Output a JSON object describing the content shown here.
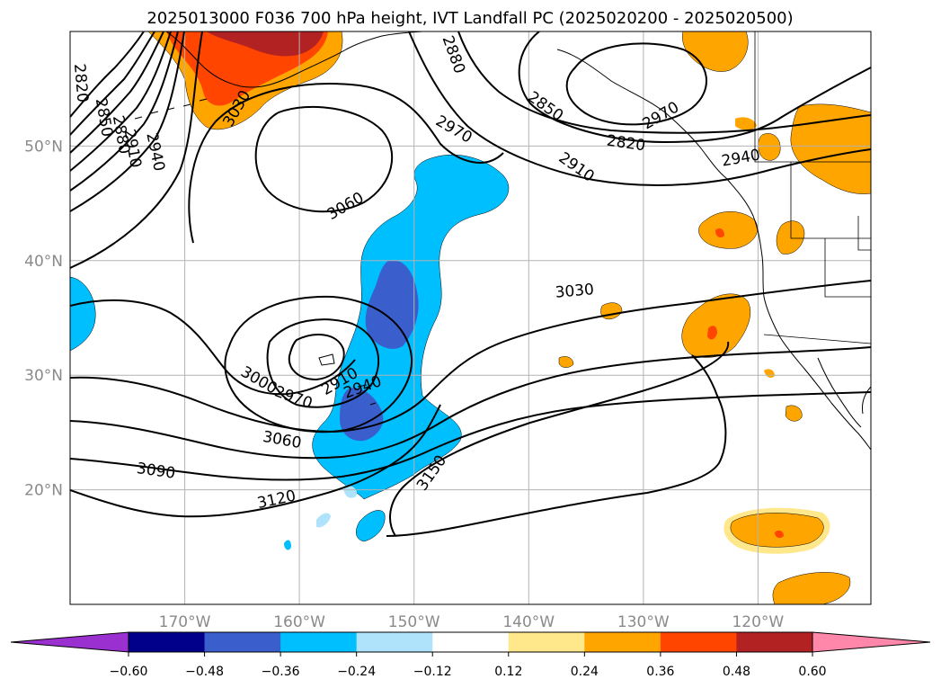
{
  "title": "2025013000 F036 700 hPa height, IVT Landfall PC (2025020200 - 2025020500)",
  "map": {
    "lat_labels": [
      {
        "lat": 50,
        "label": "50°N"
      },
      {
        "lat": 40,
        "label": "40°N"
      },
      {
        "lat": 30,
        "label": "30°N"
      },
      {
        "lat": 20,
        "label": "20°N"
      }
    ],
    "lon_labels": [
      {
        "lon": -170,
        "label": "170°W"
      },
      {
        "lon": -160,
        "label": "160°W"
      },
      {
        "lon": -150,
        "label": "150°W"
      },
      {
        "lon": -140,
        "label": "140°W"
      },
      {
        "lon": -130,
        "label": "130°W"
      },
      {
        "lon": -120,
        "label": "120°W"
      }
    ],
    "contour_labels": [
      {
        "text": "2820",
        "lon": -179.0,
        "lat": 55.5,
        "angle": 85
      },
      {
        "text": "2850",
        "lon": -177.0,
        "lat": 52.5,
        "angle": 80
      },
      {
        "text": "2880",
        "lon": -175.5,
        "lat": 51.0,
        "angle": 80
      },
      {
        "text": "2910",
        "lon": -174.5,
        "lat": 49.8,
        "angle": 80
      },
      {
        "text": "2940",
        "lon": -172.5,
        "lat": 49.5,
        "angle": 78
      },
      {
        "text": "3030",
        "lon": -165.5,
        "lat": 53.3,
        "angle": -60
      },
      {
        "text": "3060",
        "lon": -156.0,
        "lat": 44.8,
        "angle": -30
      },
      {
        "text": "2880",
        "lon": -146.5,
        "lat": 58.0,
        "angle": 70
      },
      {
        "text": "2970",
        "lon": -146.5,
        "lat": 51.5,
        "angle": 30
      },
      {
        "text": "2850",
        "lon": -138.5,
        "lat": 53.5,
        "angle": 35
      },
      {
        "text": "2910",
        "lon": -135.8,
        "lat": 48.2,
        "angle": 35
      },
      {
        "text": "2820",
        "lon": -131.5,
        "lat": 50.3,
        "angle": 8
      },
      {
        "text": "2970",
        "lon": -128.5,
        "lat": 52.7,
        "angle": -30
      },
      {
        "text": "2940",
        "lon": -121.5,
        "lat": 49.0,
        "angle": -10
      },
      {
        "text": "3030",
        "lon": -136.0,
        "lat": 37.4,
        "angle": -5
      },
      {
        "text": "3000",
        "lon": -163.5,
        "lat": 29.6,
        "angle": 30
      },
      {
        "text": "2970",
        "lon": -160.5,
        "lat": 28.1,
        "angle": 20
      },
      {
        "text": "2910",
        "lon": -156.5,
        "lat": 29.5,
        "angle": -30
      },
      {
        "text": "2940",
        "lon": -154.5,
        "lat": 29.0,
        "angle": -20
      },
      {
        "text": "3060",
        "lon": -161.5,
        "lat": 24.4,
        "angle": 10
      },
      {
        "text": "3090",
        "lon": -172.5,
        "lat": 21.7,
        "angle": 8
      },
      {
        "text": "3120",
        "lon": -162.0,
        "lat": 19.2,
        "angle": -12
      },
      {
        "text": "3150",
        "lon": -148.5,
        "lat": 21.5,
        "angle": -55
      }
    ]
  },
  "colorbar": {
    "ticks": [
      "−0.60",
      "−0.48",
      "−0.36",
      "−0.24",
      "−0.12",
      "0.12",
      "0.24",
      "0.36",
      "0.48",
      "0.60"
    ],
    "low_extend_color": "#9b30d0",
    "high_extend_color": "#ff88aa",
    "bin_colors": [
      "#00008b",
      "#3a5fcd",
      "#00bfff",
      "#aee3fb",
      "#ffffff",
      "#ffe88c",
      "#ffa500",
      "#ff4500",
      "#b22222"
    ]
  },
  "colors": {
    "neg_light": "#aee3fb",
    "neg_mid": "#00bfff",
    "neg_strong": "#3a5fcd",
    "pos_light": "#ffe88c",
    "pos_mid": "#ffa500",
    "pos_strong": "#ff4500",
    "pos_deep": "#b22222"
  }
}
